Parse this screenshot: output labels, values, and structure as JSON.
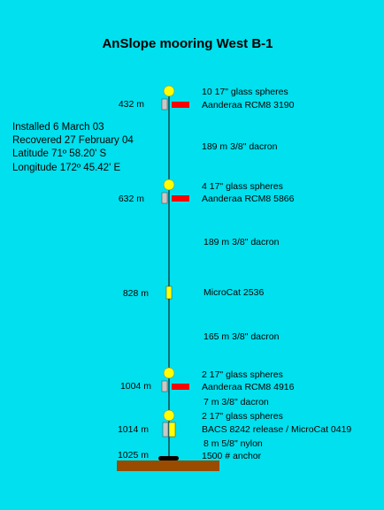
{
  "title": "AnSlope mooring West B-1",
  "deployment": [
    "Installed 6 March 03",
    "Recovered 27 February 04",
    "Latitude 71º 58.20' S",
    "Longitude 172º 45.42' E"
  ],
  "depths": [
    "432 m",
    "632 m",
    "828 m",
    "1004 m",
    "1014 m",
    "1025 m"
  ],
  "labels": [
    "10 17\" glass spheres",
    "Aanderaa RCM8 3190",
    "189 m 3/8\" dacron",
    "4 17\" glass spheres",
    "Aanderaa RCM8 5866",
    "189  m 3/8\" dacron",
    "MicroCat 2536",
    "165 m 3/8\" dacron",
    "2 17\" glass spheres",
    "Aanderaa RCM8  4916",
    "7 m 3/8\" dacron",
    "2 17\" glass spheres",
    "BACS 8242 release / MicroCat 0419",
    "8 m 5/8\" nylon",
    "1500 # anchor"
  ]
}
